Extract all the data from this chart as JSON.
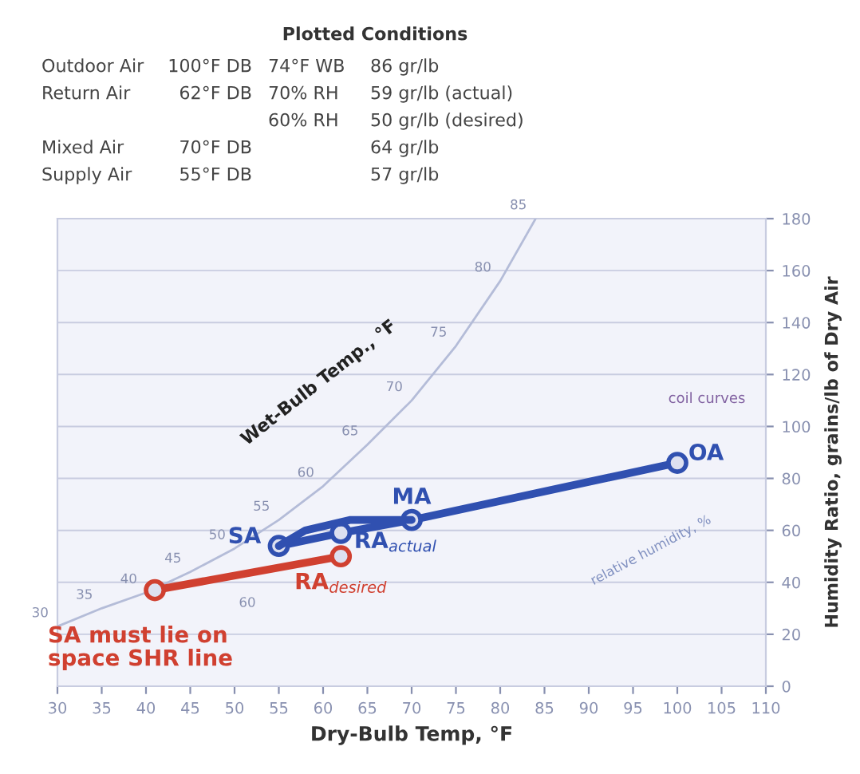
{
  "chart_data": {
    "type": "line",
    "title": "Plotted Conditions",
    "xlabel": "Dry-Bulb Temp, °F",
    "ylabel": "Humidity Ratio, grains/lb of Dry Air",
    "xlim": [
      30,
      110
    ],
    "xticks": [
      30,
      35,
      40,
      45,
      50,
      55,
      60,
      65,
      70,
      75,
      80,
      85,
      90,
      95,
      100,
      105,
      110
    ],
    "ylim": [
      0,
      180
    ],
    "yticks": [
      0,
      20,
      40,
      60,
      80,
      100,
      120,
      140,
      160,
      180
    ],
    "grid": "y",
    "series": [
      {
        "color": "#b4bcd8",
        "marker": "none",
        "x": [
          30,
          35,
          40,
          45,
          50,
          55,
          60,
          65,
          70,
          75,
          80,
          84
        ],
        "values": [
          23,
          30,
          36,
          44,
          53,
          64,
          77,
          93,
          110,
          131,
          156,
          180
        ]
      },
      {
        "color": "#3050b0",
        "marker": "circle",
        "x": [
          100,
          70,
          62,
          55
        ],
        "values": [
          86,
          64,
          59,
          54
        ]
      },
      {
        "color": "#3050b0",
        "marker": "none",
        "x": [
          55,
          58,
          63,
          70
        ],
        "values": [
          54,
          60,
          64,
          64
        ]
      },
      {
        "color": "#d04030",
        "marker": "circle",
        "x": [
          41,
          62
        ],
        "values": [
          37,
          50
        ]
      }
    ],
    "annotations": [
      "Outdoor Air",
      "100°F DB",
      "74°F WB",
      "86 gr/lb",
      "Return Air",
      "62°F DB",
      "70% RH",
      "59 gr/lb (actual)",
      "60% RH",
      "50 gr/lb (desired)",
      "Mixed Air",
      "70°F DB",
      "64 gr/lb",
      "Supply Air",
      "55°F DB",
      "57 gr/lb",
      "Wet-Bulb Temp., °F",
      "coil curves",
      "relative humidity, %",
      "SA must lie on\nspace SHR line",
      "60",
      {
        "text": "OA",
        "x": 100,
        "y": 86
      },
      {
        "text": "MA",
        "x": 70,
        "y": 64
      },
      {
        "text": "SA",
        "x": 55,
        "y": 54
      },
      {
        "text": "RA$_{actual}$",
        "x": 62,
        "y": 59
      },
      {
        "text": "RA$_{desired}$",
        "x": 62,
        "y": 50
      },
      {
        "text": "30",
        "x": 30,
        "y": 23
      },
      {
        "text": "35",
        "x": 35,
        "y": 30
      },
      {
        "text": "40",
        "x": 40,
        "y": 36
      },
      {
        "text": "45",
        "x": 45,
        "y": 44
      },
      {
        "text": "50",
        "x": 50,
        "y": 53
      },
      {
        "text": "55",
        "x": 55,
        "y": 64
      },
      {
        "text": "60",
        "x": 60,
        "y": 77
      },
      {
        "text": "65",
        "x": 65,
        "y": 93
      },
      {
        "text": "70",
        "x": 70,
        "y": 110
      },
      {
        "text": "75",
        "x": 75,
        "y": 131
      },
      {
        "text": "80",
        "x": 80,
        "y": 156
      },
      {
        "text": "85",
        "x": 84,
        "y": 180
      }
    ]
  }
}
